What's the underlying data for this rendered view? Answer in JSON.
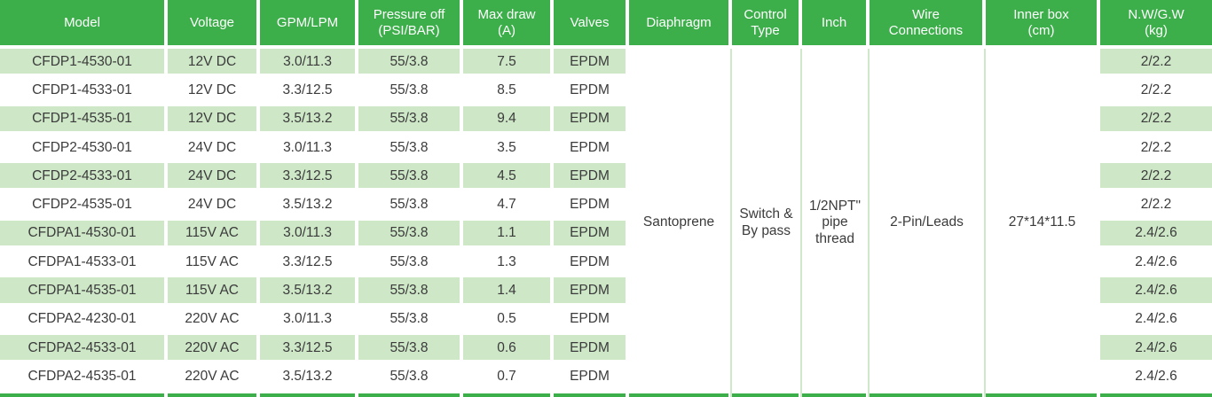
{
  "colors": {
    "header_green": "#3CAE4A",
    "row_green": "#CDE7C7",
    "separator_green": "#CFE8C9",
    "bottom_bar_green": "#3CAE4A",
    "header_text": "#FFFFFF",
    "body_text": "#3B3B3B"
  },
  "table": {
    "columns": [
      {
        "id": "model",
        "label": "Model"
      },
      {
        "id": "voltage",
        "label": "Voltage"
      },
      {
        "id": "gpm_lpm",
        "label": "GPM/LPM"
      },
      {
        "id": "pressure_off",
        "label": "Pressure off\n(PSI/BAR)"
      },
      {
        "id": "max_draw",
        "label": "Max draw\n(A)"
      },
      {
        "id": "valves",
        "label": "Valves"
      },
      {
        "id": "diaphragm",
        "label": "Diaphragm"
      },
      {
        "id": "control_type",
        "label": "Control\nType"
      },
      {
        "id": "inch",
        "label": "Inch"
      },
      {
        "id": "wire_connections",
        "label": "Wire\nConnections"
      },
      {
        "id": "inner_box",
        "label": "Inner box\n(cm)"
      },
      {
        "id": "nw_gw",
        "label": "N.W/G.W\n(kg)"
      }
    ],
    "rows": [
      {
        "model": "CFDP1-4530-01",
        "voltage": "12V DC",
        "gpm_lpm": "3.0/11.3",
        "pressure_off": "55/3.8",
        "max_draw": "7.5",
        "valves": "EPDM",
        "nw_gw": "2/2.2"
      },
      {
        "model": "CFDP1-4533-01",
        "voltage": "12V DC",
        "gpm_lpm": "3.3/12.5",
        "pressure_off": "55/3.8",
        "max_draw": "8.5",
        "valves": "EPDM",
        "nw_gw": "2/2.2"
      },
      {
        "model": "CFDP1-4535-01",
        "voltage": "12V DC",
        "gpm_lpm": "3.5/13.2",
        "pressure_off": "55/3.8",
        "max_draw": "9.4",
        "valves": "EPDM",
        "nw_gw": "2/2.2"
      },
      {
        "model": "CFDP2-4530-01",
        "voltage": "24V DC",
        "gpm_lpm": "3.0/11.3",
        "pressure_off": "55/3.8",
        "max_draw": "3.5",
        "valves": "EPDM",
        "nw_gw": "2/2.2"
      },
      {
        "model": "CFDP2-4533-01",
        "voltage": "24V DC",
        "gpm_lpm": "3.3/12.5",
        "pressure_off": "55/3.8",
        "max_draw": "4.5",
        "valves": "EPDM",
        "nw_gw": "2/2.2"
      },
      {
        "model": "CFDP2-4535-01",
        "voltage": "24V DC",
        "gpm_lpm": "3.5/13.2",
        "pressure_off": "55/3.8",
        "max_draw": "4.7",
        "valves": "EPDM",
        "nw_gw": "2/2.2"
      },
      {
        "model": "CFDPA1-4530-01",
        "voltage": "115V AC",
        "gpm_lpm": "3.0/11.3",
        "pressure_off": "55/3.8",
        "max_draw": "1.1",
        "valves": "EPDM",
        "nw_gw": "2.4/2.6"
      },
      {
        "model": "CFDPA1-4533-01",
        "voltage": "115V AC",
        "gpm_lpm": "3.3/12.5",
        "pressure_off": "55/3.8",
        "max_draw": "1.3",
        "valves": "EPDM",
        "nw_gw": "2.4/2.6"
      },
      {
        "model": "CFDPA1-4535-01",
        "voltage": "115V AC",
        "gpm_lpm": "3.5/13.2",
        "pressure_off": "55/3.8",
        "max_draw": "1.4",
        "valves": "EPDM",
        "nw_gw": "2.4/2.6"
      },
      {
        "model": "CFDPA2-4230-01",
        "voltage": "220V AC",
        "gpm_lpm": "3.0/11.3",
        "pressure_off": "55/3.8",
        "max_draw": "0.5",
        "valves": "EPDM",
        "nw_gw": "2.4/2.6"
      },
      {
        "model": "CFDPA2-4533-01",
        "voltage": "220V AC",
        "gpm_lpm": "3.3/12.5",
        "pressure_off": "55/3.8",
        "max_draw": "0.6",
        "valves": "EPDM",
        "nw_gw": "2.4/2.6"
      },
      {
        "model": "CFDPA2-4535-01",
        "voltage": "220V AC",
        "gpm_lpm": "3.5/13.2",
        "pressure_off": "55/3.8",
        "max_draw": "0.7",
        "valves": "EPDM",
        "nw_gw": "2.4/2.6"
      }
    ],
    "merged": {
      "diaphragm": "Santoprene",
      "control_type": "Switch &\nBy pass",
      "inch": "1/2NPT\"\npipe\nthread",
      "wire_connections": "2-Pin/Leads",
      "inner_box": "27*14*11.5"
    }
  }
}
